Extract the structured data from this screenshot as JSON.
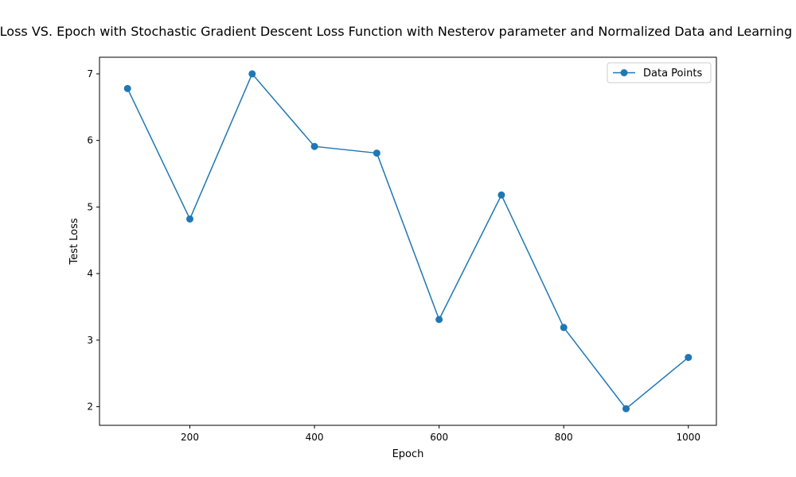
{
  "chart_data": {
    "type": "line",
    "title": "Test Loss VS. Epoch with Stochastic Gradient Descent Loss Function with Nesterov parameter and Normalized Data and Learning Rate",
    "xlabel": "Epoch",
    "ylabel": "Test Loss",
    "x": [
      100,
      200,
      300,
      400,
      500,
      600,
      700,
      800,
      900,
      1000
    ],
    "series": [
      {
        "name": "Data Points",
        "values": [
          6.78,
          4.82,
          7.0,
          5.91,
          5.81,
          3.31,
          5.18,
          3.19,
          1.97,
          2.74
        ],
        "color": "#1f77b4",
        "marker": "circle"
      }
    ],
    "xlim": [
      55,
      1045
    ],
    "ylim": [
      1.72,
      7.25
    ],
    "xticks": [
      200,
      400,
      600,
      800,
      1000
    ],
    "yticks": [
      2,
      3,
      4,
      5,
      6,
      7
    ],
    "grid": false,
    "legend": "upper-right"
  }
}
